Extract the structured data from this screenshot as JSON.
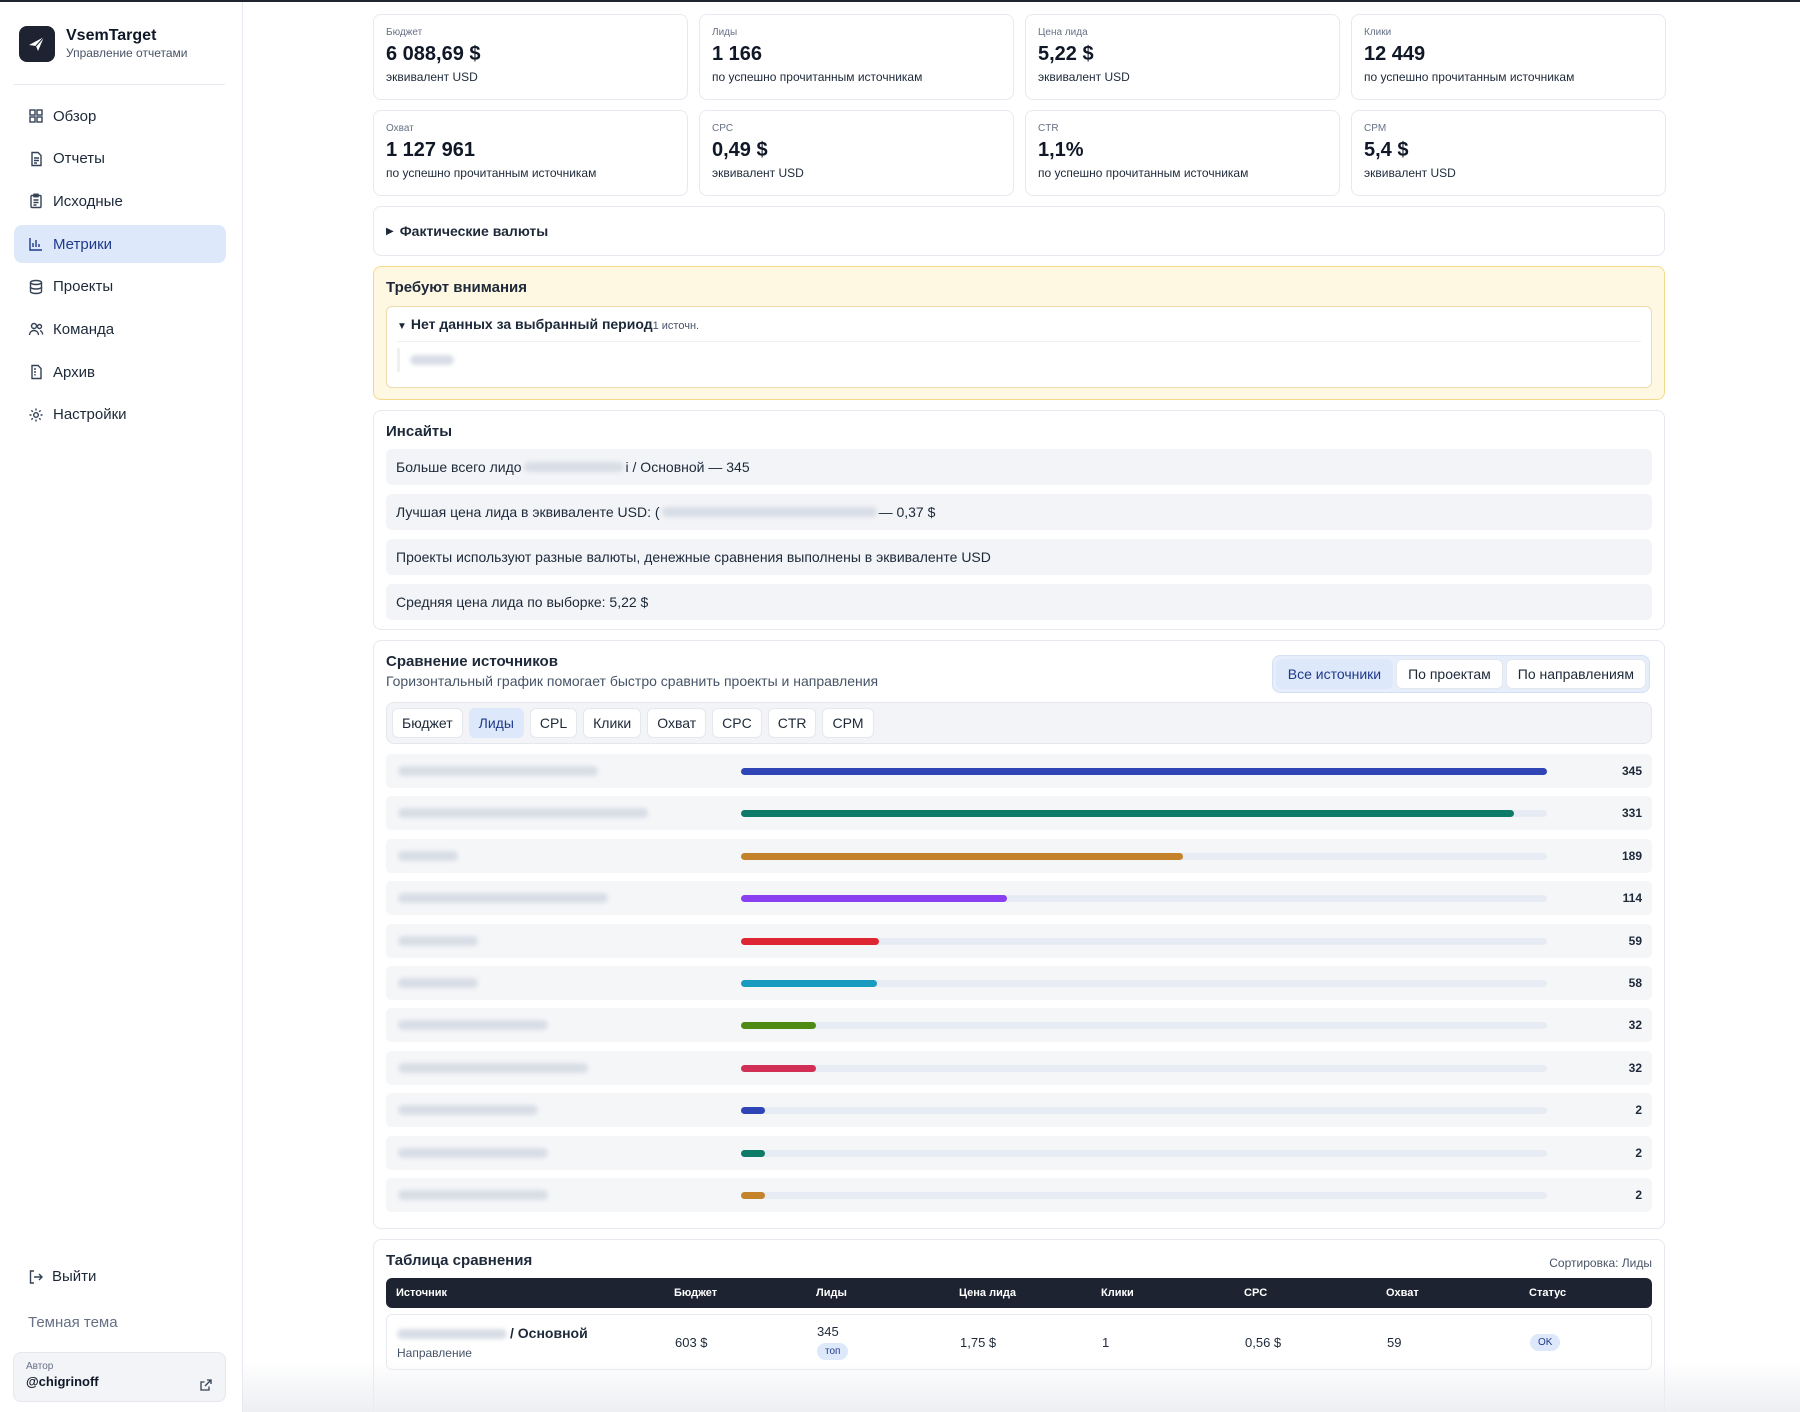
{
  "app": {
    "name": "VsemTarget",
    "subtitle": "Управление отчетами"
  },
  "nav": [
    {
      "label": "Обзор",
      "icon": "grid-icon",
      "active": false
    },
    {
      "label": "Отчеты",
      "icon": "report-icon",
      "active": false
    },
    {
      "label": "Исходные",
      "icon": "clipboard-icon",
      "active": false
    },
    {
      "label": "Метрики",
      "icon": "bar-chart-icon",
      "active": true
    },
    {
      "label": "Проекты",
      "icon": "database-icon",
      "active": false
    },
    {
      "label": "Команда",
      "icon": "users-icon",
      "active": false
    },
    {
      "label": "Архив",
      "icon": "archive-icon",
      "active": false
    },
    {
      "label": "Настройки",
      "icon": "gear-icon",
      "active": false
    }
  ],
  "sidebar_footer": {
    "logout": "Выйти",
    "theme": "Темная тема",
    "author_label": "Автор",
    "author_name": "@chigrinoff"
  },
  "kpis": [
    {
      "label": "Бюджет",
      "value": "6 088,69 $",
      "note": "эквивалент USD"
    },
    {
      "label": "Лиды",
      "value": "1 166",
      "note": "по успешно прочитанным источникам"
    },
    {
      "label": "Цена лида",
      "value": "5,22 $",
      "note": "эквивалент USD"
    },
    {
      "label": "Клики",
      "value": "12 449",
      "note": "по успешно прочитанным источникам"
    },
    {
      "label": "Охват",
      "value": "1 127 961",
      "note": "по успешно прочитанным источникам"
    },
    {
      "label": "CPC",
      "value": "0,49 $",
      "note": "эквивалент USD"
    },
    {
      "label": "CTR",
      "value": "1,1%",
      "note": "по успешно прочитанным источникам"
    },
    {
      "label": "CPM",
      "value": "5,4 $",
      "note": "эквивалент USD"
    }
  ],
  "fx_toggle": "Фактические валюты",
  "attention": {
    "title": "Требуют внимания",
    "group_title": "Нет данных за выбранный период",
    "group_count": "1 источн."
  },
  "insights": {
    "title": "Инсайты",
    "rows": [
      {
        "pre": "Больше всего лидо",
        "post": "i / Основной — 345",
        "blur": 100
      },
      {
        "pre": "Лучшая цена лида в эквиваленте USD: (",
        "post": " — 0,37 $",
        "blur": 215
      },
      {
        "pre": "Проекты используют разные валюты, денежные сравнения выполнены в эквиваленте USD",
        "post": "",
        "blur": 0
      },
      {
        "pre": "Средняя цена лида по выборке: 5,22 $",
        "post": "",
        "blur": 0
      }
    ]
  },
  "compare": {
    "title": "Сравнение источников",
    "subtitle": "Горизонтальный график помогает быстро сравнить проекты и направления",
    "modes": [
      {
        "label": "Все источники",
        "active": true
      },
      {
        "label": "По проектам",
        "active": false
      },
      {
        "label": "По направлениям",
        "active": false
      }
    ],
    "metrics": [
      {
        "label": "Бюджет",
        "active": false
      },
      {
        "label": "Лиды",
        "active": true
      },
      {
        "label": "CPL",
        "active": false
      },
      {
        "label": "Клики",
        "active": false
      },
      {
        "label": "Охват",
        "active": false
      },
      {
        "label": "CPC",
        "active": false
      },
      {
        "label": "CTR",
        "active": false
      },
      {
        "label": "CPM",
        "active": false
      }
    ]
  },
  "chart_data": {
    "type": "bar",
    "orientation": "horizontal",
    "values": [
      345,
      331,
      189,
      114,
      59,
      58,
      32,
      32,
      2,
      2,
      2
    ],
    "labels": [
      "345",
      "331",
      "189",
      "114",
      "59",
      "58",
      "32",
      "32",
      "2",
      "2",
      "2"
    ],
    "colors": [
      "#2f45b5",
      "#0e7a68",
      "#c4822b",
      "#8a3ff0",
      "#dd2631",
      "#1a9cc0",
      "#4f8a14",
      "#d22f57",
      "#2f45b5",
      "#0e7a68",
      "#c4822b"
    ],
    "xlim": [
      0,
      345
    ],
    "grid": false,
    "legend": "none"
  },
  "table": {
    "title": "Таблица сравнения",
    "sort_note": "Сортировка: Лиды",
    "columns": [
      "Источник",
      "Бюджет",
      "Лиды",
      "Цена лида",
      "Клики",
      "CPC",
      "Охват",
      "Статус"
    ],
    "row": {
      "source_tail": "/ Основной",
      "source_sub": "Направление",
      "budget": "603 $",
      "leads": "345",
      "badge": "топ",
      "cpl": "1,75 $",
      "clicks": "1",
      "cpc": "0,56 $",
      "reach": "59",
      "status": "OK"
    }
  },
  "ui_colors": {
    "accent": "#1f3a8a",
    "active_bg": "#dde8fb",
    "attention_bg": "#fef7e2",
    "table_head": "#1d2330"
  }
}
